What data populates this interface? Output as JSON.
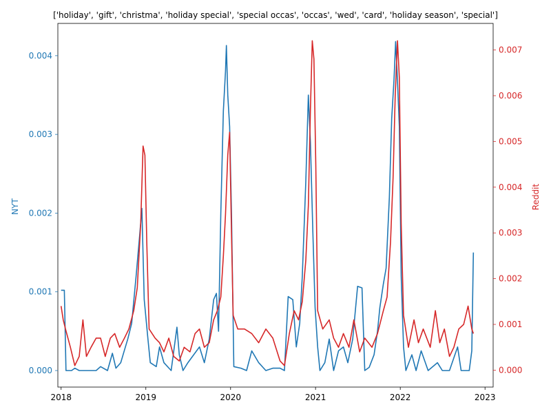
{
  "chart_data": {
    "type": "line",
    "title": "['holiday', 'gift', 'christma', 'holiday special', 'special occas', 'occas', 'wed', 'card', 'holiday season', 'special']",
    "xlabel": "",
    "x_ticks": [
      "2018",
      "2019",
      "2020",
      "2021",
      "2022",
      "2023"
    ],
    "xlim": [
      "2017-12-18",
      "2023-02-05"
    ],
    "legend": "none",
    "grid": false,
    "y_axes": {
      "left": {
        "label": "NYT",
        "color": "#1f77b4",
        "ylim": [
          -0.00021,
          0.00441
        ],
        "ticks": [
          "0.000",
          "0.001",
          "0.002",
          "0.003",
          "0.004"
        ]
      },
      "right": {
        "label": "Reddit",
        "color": "#d62728",
        "ylim": [
          -0.00037,
          0.00758
        ],
        "ticks": [
          "0.000",
          "0.001",
          "0.002",
          "0.003",
          "0.004",
          "0.005",
          "0.006",
          "0.007"
        ]
      }
    },
    "series": [
      {
        "axis": "left",
        "color": "#1f77b4",
        "points": [
          [
            "2018-01-01",
            0.00102
          ],
          [
            "2018-01-15",
            0.00102
          ],
          [
            "2018-01-22",
            0.0
          ],
          [
            "2018-02-15",
            0.0
          ],
          [
            "2018-03-01",
            3e-05
          ],
          [
            "2018-03-20",
            0.0
          ],
          [
            "2018-06-01",
            0.0
          ],
          [
            "2018-06-20",
            5e-05
          ],
          [
            "2018-07-20",
            0.0
          ],
          [
            "2018-08-10",
            0.00022
          ],
          [
            "2018-08-25",
            3e-05
          ],
          [
            "2018-09-15",
            0.0001
          ],
          [
            "2018-10-01",
            0.00026
          ],
          [
            "2018-10-15",
            0.0004
          ],
          [
            "2018-11-01",
            0.0006
          ],
          [
            "2018-11-20",
            0.0012
          ],
          [
            "2018-12-05",
            0.0017
          ],
          [
            "2018-12-15",
            0.00206
          ],
          [
            "2018-12-25",
            0.0009
          ],
          [
            "2019-01-10",
            0.0004
          ],
          [
            "2019-01-20",
            0.0001
          ],
          [
            "2019-02-15",
            5e-05
          ],
          [
            "2019-03-01",
            0.0003
          ],
          [
            "2019-03-20",
            0.0001
          ],
          [
            "2019-04-20",
            0.0
          ],
          [
            "2019-05-15",
            0.00055
          ],
          [
            "2019-05-25",
            0.0002
          ],
          [
            "2019-06-10",
            0.0
          ],
          [
            "2019-07-01",
            0.0001
          ],
          [
            "2019-08-20",
            0.0003
          ],
          [
            "2019-09-10",
            0.0001
          ],
          [
            "2019-10-01",
            0.0004
          ],
          [
            "2019-10-20",
            0.0009
          ],
          [
            "2019-11-01",
            0.00098
          ],
          [
            "2019-11-10",
            0.0005
          ],
          [
            "2019-11-20",
            0.002
          ],
          [
            "2019-12-01",
            0.0033
          ],
          [
            "2019-12-10",
            0.0038
          ],
          [
            "2019-12-14",
            0.00413
          ],
          [
            "2019-12-20",
            0.0035
          ],
          [
            "2019-12-28",
            0.0031
          ],
          [
            "2020-01-05",
            0.002
          ],
          [
            "2020-01-15",
            5e-05
          ],
          [
            "2020-02-15",
            3e-05
          ],
          [
            "2020-03-10",
            0.0
          ],
          [
            "2020-04-01",
            0.00025
          ],
          [
            "2020-05-01",
            0.0001
          ],
          [
            "2020-06-01",
            0.0
          ],
          [
            "2020-07-01",
            3e-05
          ],
          [
            "2020-08-01",
            3e-05
          ],
          [
            "2020-08-20",
            0.0
          ],
          [
            "2020-09-05",
            0.00094
          ],
          [
            "2020-09-25",
            0.0009
          ],
          [
            "2020-10-10",
            0.0003
          ],
          [
            "2020-10-25",
            0.0006
          ],
          [
            "2020-11-05",
            0.0012
          ],
          [
            "2020-11-20",
            0.0024
          ],
          [
            "2020-12-01",
            0.0035
          ],
          [
            "2020-12-10",
            0.0029
          ],
          [
            "2020-12-20",
            0.0018
          ],
          [
            "2020-12-30",
            0.0008
          ],
          [
            "2021-01-10",
            0.0003
          ],
          [
            "2021-01-20",
            0.0
          ],
          [
            "2021-02-10",
            0.0001
          ],
          [
            "2021-03-01",
            0.0004
          ],
          [
            "2021-03-20",
            0.0
          ],
          [
            "2021-04-10",
            0.00025
          ],
          [
            "2021-05-01",
            0.0003
          ],
          [
            "2021-05-20",
            0.0001
          ],
          [
            "2021-06-10",
            0.0004
          ],
          [
            "2021-07-01",
            0.00107
          ],
          [
            "2021-07-20",
            0.00105
          ],
          [
            "2021-08-01",
            0.0
          ],
          [
            "2021-08-20",
            4e-05
          ],
          [
            "2021-09-10",
            0.0002
          ],
          [
            "2021-09-25",
            0.0005
          ],
          [
            "2021-10-05",
            0.0008
          ],
          [
            "2021-10-20",
            0.0011
          ],
          [
            "2021-11-01",
            0.0013
          ],
          [
            "2021-11-15",
            0.0022
          ],
          [
            "2021-11-25",
            0.0032
          ],
          [
            "2021-12-05",
            0.0037
          ],
          [
            "2021-12-12",
            0.00418
          ],
          [
            "2021-12-18",
            0.0038
          ],
          [
            "2021-12-28",
            0.0031
          ],
          [
            "2022-01-05",
            0.0012
          ],
          [
            "2022-01-15",
            0.0003
          ],
          [
            "2022-01-25",
            0.0
          ],
          [
            "2022-02-20",
            0.0002
          ],
          [
            "2022-03-10",
            0.0
          ],
          [
            "2022-04-01",
            0.00025
          ],
          [
            "2022-05-01",
            0.0
          ],
          [
            "2022-06-10",
            0.0001
          ],
          [
            "2022-07-01",
            0.0
          ],
          [
            "2022-08-01",
            0.0
          ],
          [
            "2022-09-05",
            0.0003
          ],
          [
            "2022-09-20",
            0.0
          ],
          [
            "2022-10-25",
            0.0
          ],
          [
            "2022-11-05",
            0.00025
          ],
          [
            "2022-11-12",
            0.0015
          ]
        ]
      },
      {
        "axis": "right",
        "color": "#d62728",
        "points": [
          [
            "2018-01-01",
            0.0014
          ],
          [
            "2018-01-10",
            0.0011
          ],
          [
            "2018-01-20",
            0.0009
          ],
          [
            "2018-02-10",
            0.0005
          ],
          [
            "2018-03-01",
            0.0001
          ],
          [
            "2018-03-20",
            0.0003
          ],
          [
            "2018-04-05",
            0.0011
          ],
          [
            "2018-04-20",
            0.0003
          ],
          [
            "2018-05-10",
            0.0005
          ],
          [
            "2018-06-01",
            0.0007
          ],
          [
            "2018-06-20",
            0.0007
          ],
          [
            "2018-07-10",
            0.0003
          ],
          [
            "2018-08-01",
            0.0007
          ],
          [
            "2018-08-20",
            0.0008
          ],
          [
            "2018-09-10",
            0.0005
          ],
          [
            "2018-10-01",
            0.0007
          ],
          [
            "2018-10-20",
            0.0009
          ],
          [
            "2018-11-10",
            0.0013
          ],
          [
            "2018-11-25",
            0.0018
          ],
          [
            "2018-12-10",
            0.0032
          ],
          [
            "2018-12-20",
            0.0049
          ],
          [
            "2018-12-28",
            0.0047
          ],
          [
            "2019-01-05",
            0.0028
          ],
          [
            "2019-01-15",
            0.0009
          ],
          [
            "2019-02-10",
            0.0007
          ],
          [
            "2019-03-01",
            0.0006
          ],
          [
            "2019-03-20",
            0.0004
          ],
          [
            "2019-04-10",
            0.0007
          ],
          [
            "2019-05-01",
            0.0003
          ],
          [
            "2019-05-25",
            0.0002
          ],
          [
            "2019-06-15",
            0.0005
          ],
          [
            "2019-07-10",
            0.0004
          ],
          [
            "2019-08-01",
            0.0008
          ],
          [
            "2019-08-20",
            0.0009
          ],
          [
            "2019-09-10",
            0.0005
          ],
          [
            "2019-10-01",
            0.0006
          ],
          [
            "2019-10-20",
            0.0011
          ],
          [
            "2019-11-05",
            0.0013
          ],
          [
            "2019-11-20",
            0.0016
          ],
          [
            "2019-12-01",
            0.0025
          ],
          [
            "2019-12-10",
            0.0034
          ],
          [
            "2019-12-20",
            0.0047
          ],
          [
            "2019-12-28",
            0.0052
          ],
          [
            "2020-01-05",
            0.003
          ],
          [
            "2020-01-12",
            0.0012
          ],
          [
            "2020-02-01",
            0.0009
          ],
          [
            "2020-03-01",
            0.0009
          ],
          [
            "2020-04-01",
            0.0008
          ],
          [
            "2020-05-01",
            0.0006
          ],
          [
            "2020-06-01",
            0.0009
          ],
          [
            "2020-07-01",
            0.0007
          ],
          [
            "2020-08-01",
            0.0002
          ],
          [
            "2020-08-20",
            0.0001
          ],
          [
            "2020-09-10",
            0.0008
          ],
          [
            "2020-10-01",
            0.0013
          ],
          [
            "2020-10-20",
            0.0011
          ],
          [
            "2020-11-05",
            0.0015
          ],
          [
            "2020-11-20",
            0.0024
          ],
          [
            "2020-12-01",
            0.0036
          ],
          [
            "2020-12-10",
            0.0057
          ],
          [
            "2020-12-18",
            0.0072
          ],
          [
            "2020-12-25",
            0.0068
          ],
          [
            "2021-01-02",
            0.0045
          ],
          [
            "2021-01-10",
            0.0013
          ],
          [
            "2021-02-01",
            0.0009
          ],
          [
            "2021-03-01",
            0.0011
          ],
          [
            "2021-03-20",
            0.0007
          ],
          [
            "2021-04-10",
            0.0005
          ],
          [
            "2021-05-01",
            0.0008
          ],
          [
            "2021-05-25",
            0.0005
          ],
          [
            "2021-06-15",
            0.0011
          ],
          [
            "2021-07-10",
            0.0004
          ],
          [
            "2021-08-01",
            0.0007
          ],
          [
            "2021-09-01",
            0.0005
          ],
          [
            "2021-09-25",
            0.0008
          ],
          [
            "2021-10-20",
            0.0013
          ],
          [
            "2021-11-05",
            0.0016
          ],
          [
            "2021-11-20",
            0.0028
          ],
          [
            "2021-12-01",
            0.0042
          ],
          [
            "2021-12-10",
            0.006
          ],
          [
            "2021-12-20",
            0.0072
          ],
          [
            "2021-12-28",
            0.0064
          ],
          [
            "2022-01-05",
            0.0032
          ],
          [
            "2022-01-15",
            0.0012
          ],
          [
            "2022-02-05",
            0.0005
          ],
          [
            "2022-03-01",
            0.0011
          ],
          [
            "2022-03-20",
            0.0006
          ],
          [
            "2022-04-10",
            0.0009
          ],
          [
            "2022-05-10",
            0.0005
          ],
          [
            "2022-06-01",
            0.0013
          ],
          [
            "2022-06-20",
            0.0006
          ],
          [
            "2022-07-10",
            0.0009
          ],
          [
            "2022-08-01",
            0.0003
          ],
          [
            "2022-08-20",
            0.0005
          ],
          [
            "2022-09-10",
            0.0009
          ],
          [
            "2022-10-01",
            0.001
          ],
          [
            "2022-10-20",
            0.0014
          ],
          [
            "2022-11-05",
            0.0009
          ],
          [
            "2022-11-12",
            0.0008
          ]
        ]
      }
    ]
  }
}
